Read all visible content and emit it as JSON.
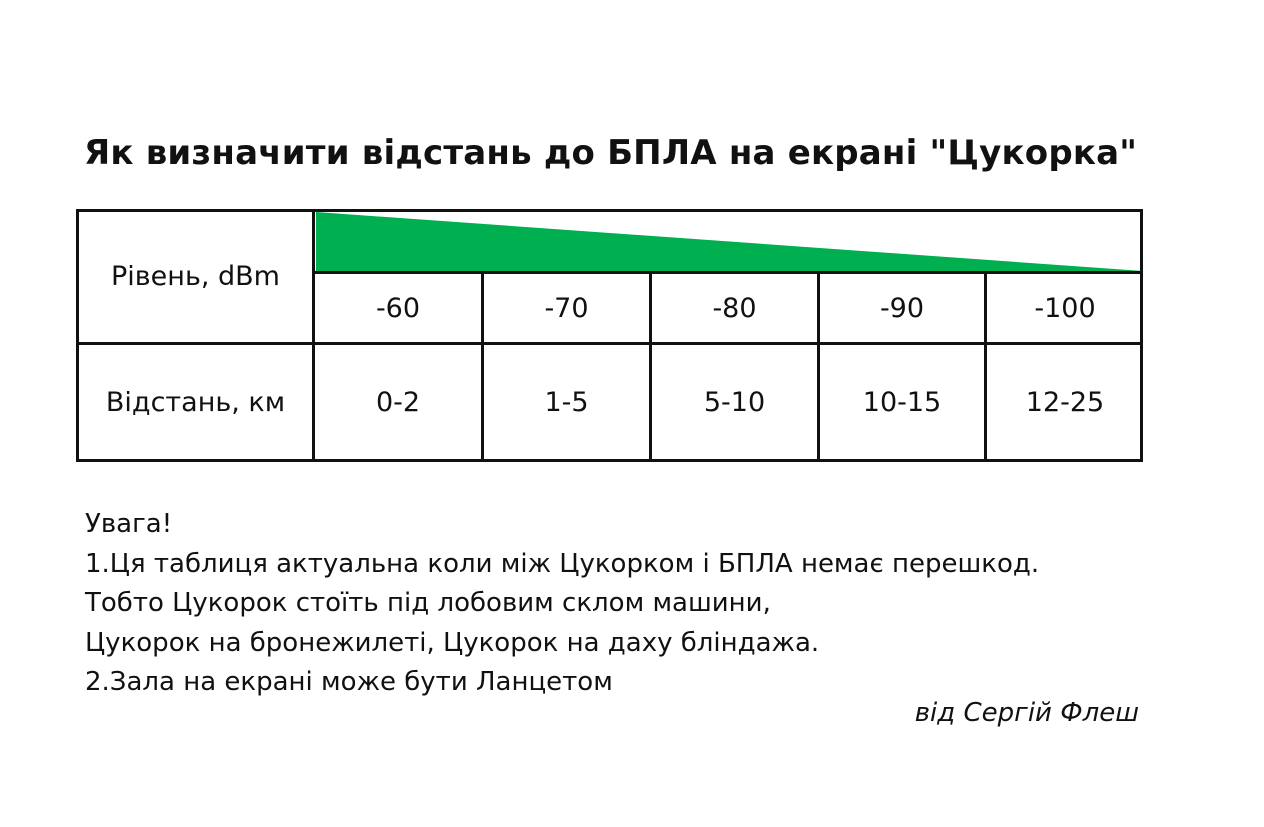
{
  "title": "Як визначити відстань до БПЛА на екрані \"Цукорка\"",
  "table": {
    "row_labels": {
      "level": "Рівень, dBm",
      "distance": "Відстань, км"
    },
    "level_values": [
      "-60",
      "-70",
      "-80",
      "-90",
      "-100"
    ],
    "distance_values": [
      "0-2",
      "1-5",
      "5-10",
      "10-15",
      "12-25"
    ],
    "wedge_color": "#00b050"
  },
  "notes": {
    "heading": "Увага!",
    "lines": [
      "1.Ця таблиця актуальна коли між Цукорком і БПЛА немає перешкод.",
      "Тобто Цукорок стоїть під лобовим склом машини,",
      "Цукорок на бронежилеті, Цукорок на даху бліндажа.",
      "2.Зала на екрані може бути Ланцетом"
    ]
  },
  "author": "від Сергій Флеш"
}
